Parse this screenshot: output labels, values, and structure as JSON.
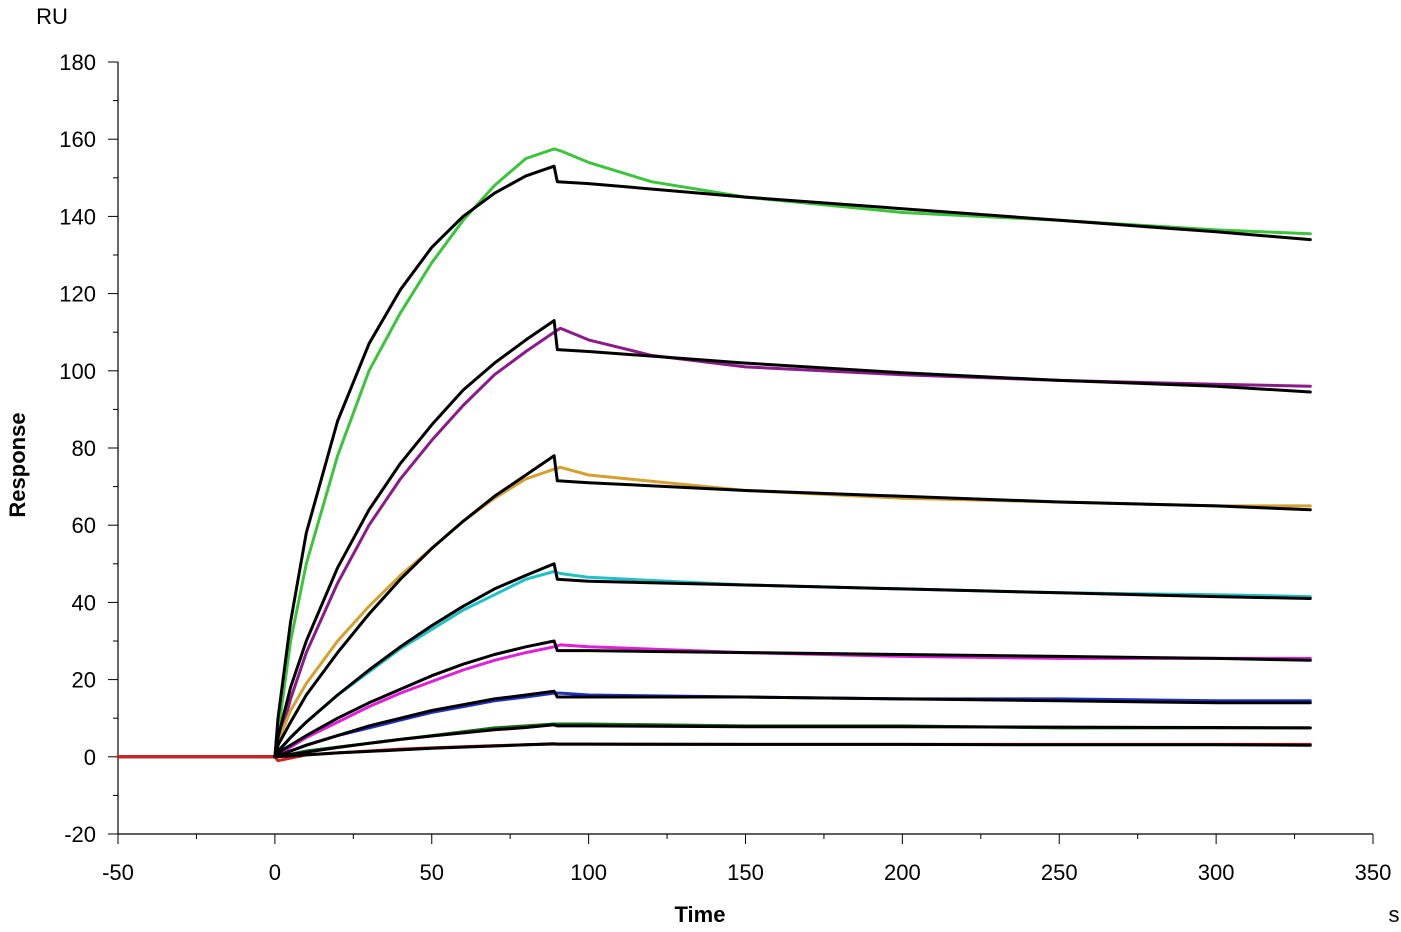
{
  "chart_data": {
    "type": "line",
    "title": "",
    "xlabel": "Time",
    "ylabel": "Response",
    "x_unit": "s",
    "y_unit": "RU",
    "xlim": [
      -50,
      350
    ],
    "ylim": [
      -20,
      180
    ],
    "x_ticks": [
      -50,
      0,
      50,
      100,
      150,
      200,
      250,
      300,
      350
    ],
    "y_ticks": [
      -20,
      0,
      20,
      40,
      60,
      80,
      100,
      120,
      140,
      160,
      180
    ],
    "grid": false,
    "legend": "none",
    "series": [
      {
        "color": "#3cc43c",
        "kind": "data",
        "x": [
          -50,
          0,
          1,
          5,
          10,
          20,
          30,
          40,
          50,
          60,
          70,
          80,
          89,
          91,
          100,
          120,
          150,
          200,
          250,
          300,
          330
        ],
        "y": [
          0,
          0,
          6,
          30,
          50,
          78,
          100,
          115,
          128,
          139,
          148,
          155,
          157.5,
          157,
          154,
          149,
          145,
          141,
          139,
          136.5,
          135.5
        ]
      },
      {
        "color": "#000000",
        "kind": "fit",
        "x": [
          0,
          1,
          5,
          10,
          20,
          30,
          40,
          50,
          60,
          70,
          80,
          89,
          90,
          100,
          150,
          200,
          250,
          300,
          330
        ],
        "y": [
          0,
          10,
          35,
          58,
          87,
          107,
          121,
          132,
          140,
          146,
          150.5,
          153,
          149,
          148.5,
          145,
          142,
          139,
          136,
          134
        ]
      },
      {
        "color": "#8b1a8b",
        "kind": "data",
        "x": [
          -50,
          0,
          1,
          5,
          10,
          20,
          30,
          40,
          50,
          60,
          70,
          80,
          89,
          91,
          100,
          120,
          150,
          200,
          250,
          300,
          330
        ],
        "y": [
          0,
          0,
          3,
          15,
          27,
          45,
          60,
          72,
          82,
          91,
          99,
          105,
          110,
          111,
          108,
          104,
          101,
          99,
          97.5,
          96.5,
          96
        ]
      },
      {
        "color": "#000000",
        "kind": "fit",
        "x": [
          0,
          1,
          5,
          10,
          20,
          30,
          40,
          50,
          60,
          70,
          80,
          89,
          90,
          100,
          150,
          200,
          250,
          300,
          330
        ],
        "y": [
          0,
          5,
          18,
          30,
          49,
          64,
          76,
          86,
          95,
          102,
          108,
          113,
          105.5,
          105,
          102,
          99.5,
          97.5,
          96,
          94.5
        ]
      },
      {
        "color": "#d4a030",
        "kind": "data",
        "x": [
          -50,
          0,
          1,
          5,
          10,
          20,
          30,
          40,
          50,
          60,
          70,
          80,
          89,
          91,
          100,
          150,
          200,
          250,
          300,
          330
        ],
        "y": [
          0,
          0,
          4,
          12,
          19,
          30,
          39,
          47,
          54,
          61,
          67,
          72,
          74.5,
          75,
          73,
          69,
          67,
          66,
          65,
          65
        ]
      },
      {
        "color": "#000000",
        "kind": "fit",
        "x": [
          0,
          1,
          5,
          10,
          20,
          30,
          40,
          50,
          60,
          70,
          80,
          89,
          90,
          100,
          150,
          200,
          250,
          300,
          330
        ],
        "y": [
          0,
          3,
          9,
          16,
          27,
          37,
          46,
          54,
          61,
          67.5,
          73,
          78,
          71.5,
          71,
          69,
          67.5,
          66,
          65,
          64
        ]
      },
      {
        "color": "#20c0c8",
        "kind": "data",
        "x": [
          -50,
          0,
          1,
          5,
          10,
          20,
          30,
          40,
          50,
          60,
          70,
          80,
          89,
          91,
          100,
          150,
          200,
          250,
          300,
          330
        ],
        "y": [
          0,
          0,
          1,
          5,
          9,
          16,
          22,
          28,
          33,
          38,
          42,
          46,
          48,
          47.5,
          46.5,
          44.5,
          43.5,
          42.5,
          42,
          41.5
        ]
      },
      {
        "color": "#000000",
        "kind": "fit",
        "x": [
          0,
          1,
          5,
          10,
          20,
          30,
          40,
          50,
          60,
          70,
          80,
          89,
          90,
          100,
          150,
          200,
          250,
          300,
          330
        ],
        "y": [
          0,
          1.5,
          5,
          9,
          16,
          22.5,
          28.5,
          34,
          39,
          43.5,
          47,
          50,
          46,
          45.5,
          44.5,
          43.5,
          42.5,
          41.5,
          41
        ]
      },
      {
        "color": "#e020d8",
        "kind": "data",
        "x": [
          -50,
          0,
          1,
          5,
          10,
          20,
          30,
          40,
          50,
          60,
          70,
          80,
          89,
          91,
          100,
          150,
          200,
          250,
          300,
          330
        ],
        "y": [
          0,
          0,
          0.5,
          2.5,
          5,
          9,
          13,
          16.5,
          19.5,
          22.5,
          25,
          27,
          28.5,
          29,
          28.5,
          27,
          26,
          25.5,
          25.5,
          25.5
        ]
      },
      {
        "color": "#000000",
        "kind": "fit",
        "x": [
          0,
          1,
          5,
          10,
          20,
          30,
          40,
          50,
          60,
          70,
          80,
          89,
          90,
          100,
          150,
          200,
          250,
          300,
          330
        ],
        "y": [
          0,
          1,
          3,
          5.5,
          10,
          14,
          17.5,
          21,
          24,
          26.5,
          28.5,
          30,
          27.5,
          27.5,
          27,
          26.5,
          26,
          25.5,
          25
        ]
      },
      {
        "color": "#2030c0",
        "kind": "data",
        "x": [
          -50,
          0,
          1,
          5,
          10,
          20,
          30,
          40,
          50,
          60,
          70,
          80,
          89,
          91,
          100,
          150,
          200,
          250,
          300,
          330
        ],
        "y": [
          0,
          0,
          0.3,
          1.5,
          3,
          5.5,
          7.5,
          9.5,
          11.5,
          13,
          14.5,
          15.5,
          16.5,
          16.5,
          16,
          15.5,
          15,
          15,
          14.5,
          14.5
        ]
      },
      {
        "color": "#000000",
        "kind": "fit",
        "x": [
          0,
          1,
          5,
          10,
          20,
          30,
          40,
          50,
          60,
          70,
          80,
          89,
          90,
          100,
          150,
          200,
          250,
          300,
          330
        ],
        "y": [
          0,
          0.3,
          1.5,
          3,
          5.5,
          8,
          10,
          12,
          13.5,
          15,
          16,
          17,
          15.5,
          15.5,
          15.5,
          15,
          14.5,
          14,
          14
        ]
      },
      {
        "color": "#1a6a1a",
        "kind": "data",
        "x": [
          -50,
          0,
          1,
          10,
          20,
          30,
          40,
          50,
          60,
          70,
          80,
          89,
          91,
          100,
          150,
          200,
          250,
          300,
          330
        ],
        "y": [
          0,
          0,
          0,
          1.5,
          2.5,
          3.5,
          4.5,
          5.5,
          6.5,
          7.5,
          8,
          8.5,
          8.5,
          8.5,
          8,
          8,
          7.5,
          7.5,
          7.5
        ]
      },
      {
        "color": "#000000",
        "kind": "fit",
        "x": [
          0,
          1,
          10,
          20,
          30,
          40,
          50,
          60,
          70,
          80,
          89,
          90,
          100,
          150,
          200,
          250,
          300,
          330
        ],
        "y": [
          0,
          0.1,
          1.2,
          2.4,
          3.5,
          4.5,
          5.4,
          6.2,
          7,
          7.6,
          8.3,
          8,
          8,
          7.8,
          7.8,
          7.7,
          7.6,
          7.5
        ]
      },
      {
        "color": "#d02020",
        "kind": "data",
        "x": [
          -50,
          0,
          1,
          10,
          20,
          30,
          40,
          50,
          60,
          70,
          80,
          89,
          91,
          100,
          150,
          200,
          250,
          300,
          330
        ],
        "y": [
          0,
          0,
          -1,
          0.5,
          1,
          1.5,
          2,
          2.3,
          2.6,
          2.9,
          3.1,
          3.3,
          3.3,
          3.3,
          3.2,
          3.2,
          3.2,
          3.2,
          3.2
        ]
      },
      {
        "color": "#000000",
        "kind": "fit",
        "x": [
          0,
          1,
          10,
          20,
          30,
          40,
          50,
          60,
          70,
          80,
          89,
          90,
          100,
          150,
          200,
          250,
          300,
          330
        ],
        "y": [
          0,
          0.05,
          0.5,
          1,
          1.4,
          1.8,
          2.2,
          2.5,
          2.8,
          3.1,
          3.4,
          3.3,
          3.3,
          3.2,
          3.2,
          3.1,
          3.1,
          3
        ]
      }
    ]
  }
}
